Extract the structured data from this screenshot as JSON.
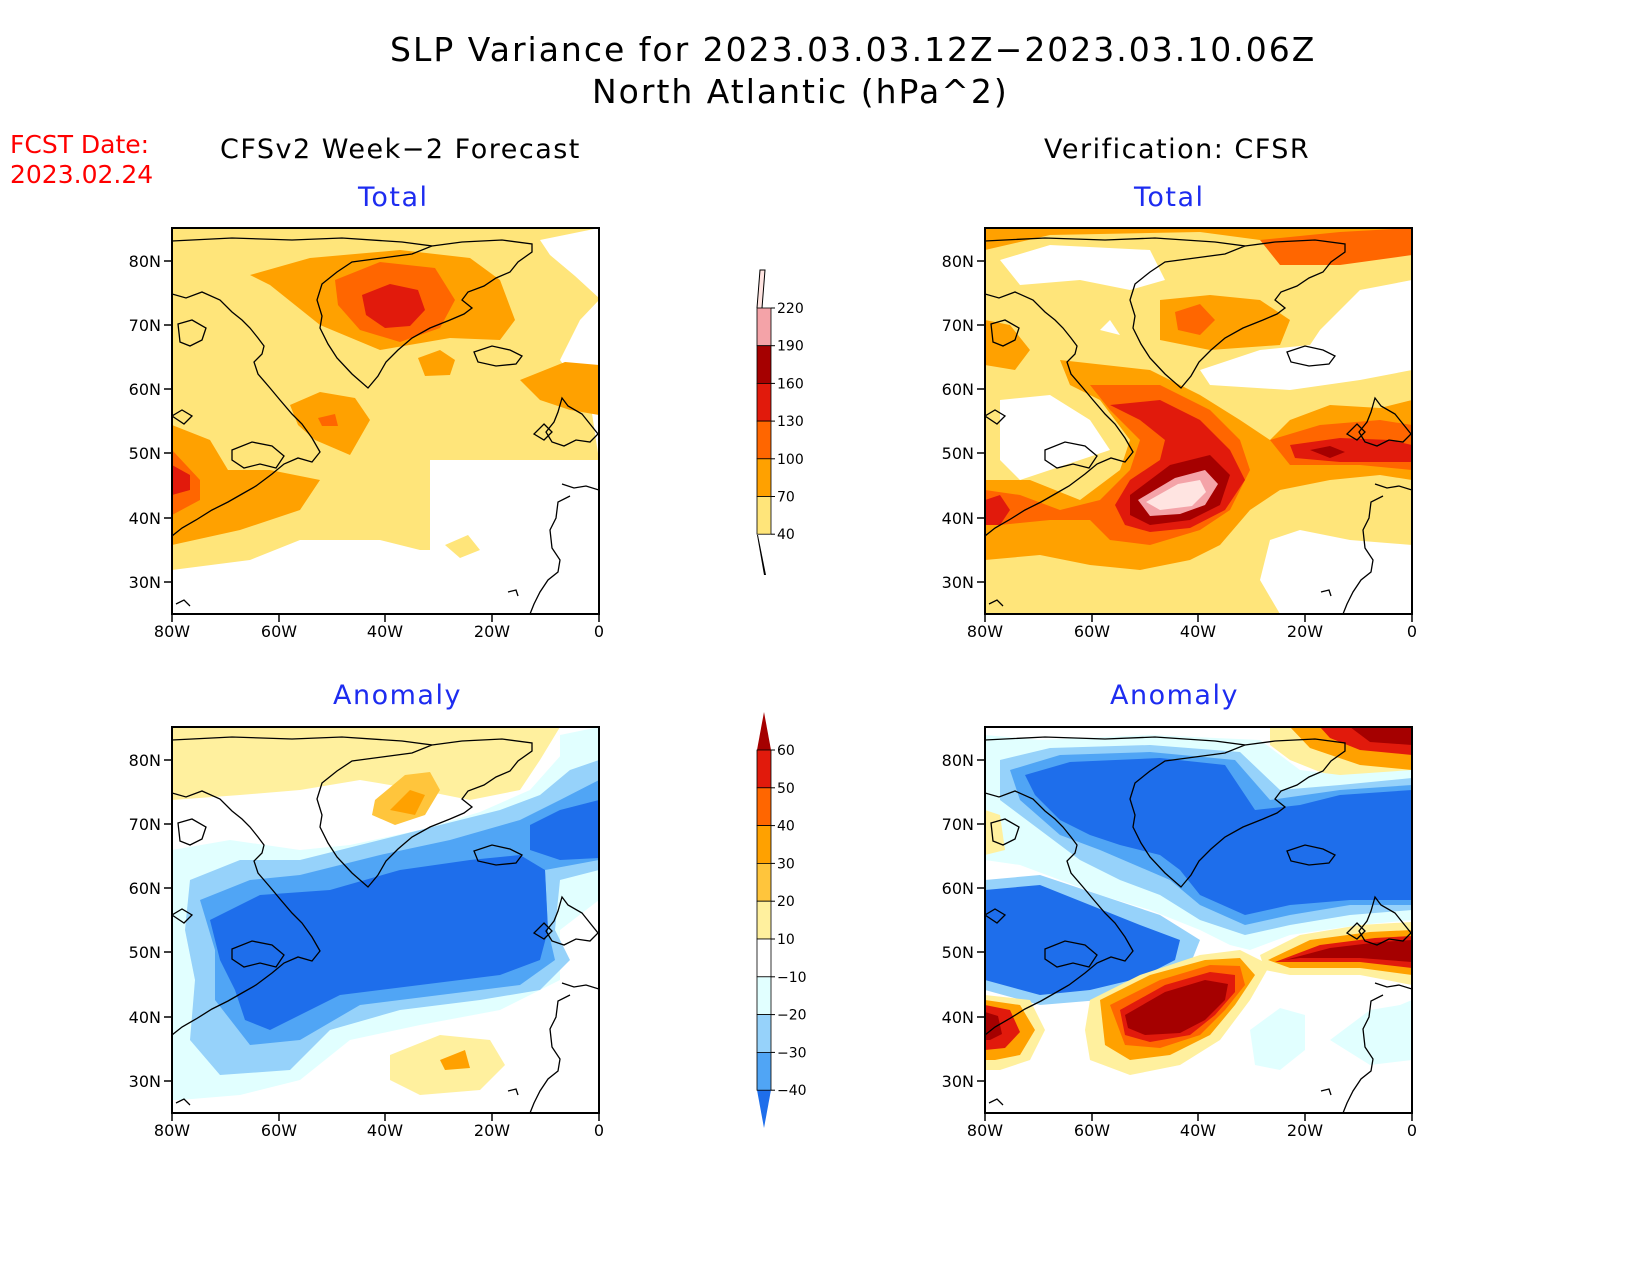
{
  "title": {
    "line1": "SLP Variance for 2023.03.03.12Z−2023.03.10.06Z",
    "line2": "North Atlantic (hPa^2)"
  },
  "fcst_date": {
    "label": "FCST Date:",
    "value": "2023.02.24"
  },
  "columns": {
    "left": "CFSv2 Week−2 Forecast",
    "right": "Verification: CFSR"
  },
  "rows": {
    "top": "Total",
    "bottom": "Anomaly"
  },
  "axes": {
    "lat_labels": [
      "80N",
      "70N",
      "60N",
      "50N",
      "40N",
      "30N"
    ],
    "lon_labels": [
      "80W",
      "60W",
      "40W",
      "20W",
      "0"
    ]
  },
  "colorbars": {
    "total": {
      "labels": [
        "220",
        "190",
        "160",
        "130",
        "100",
        "70",
        "40"
      ],
      "colors": [
        "#ffe4e1",
        "#f4a3a8",
        "#a50000",
        "#e11a0c",
        "#ff6600",
        "#ffa100",
        "#ffe57a"
      ]
    },
    "anomaly": {
      "labels": [
        "60",
        "50",
        "40",
        "30",
        "20",
        "10",
        "−10",
        "−20",
        "−30",
        "−40"
      ],
      "colors": [
        "#a50000",
        "#e11a0c",
        "#ff6600",
        "#ffa100",
        "#ffc53c",
        "#fff09e",
        "#ffffff",
        "#e1ffff",
        "#96d2fa",
        "#50a5f5",
        "#1e6eeb"
      ]
    }
  }
}
